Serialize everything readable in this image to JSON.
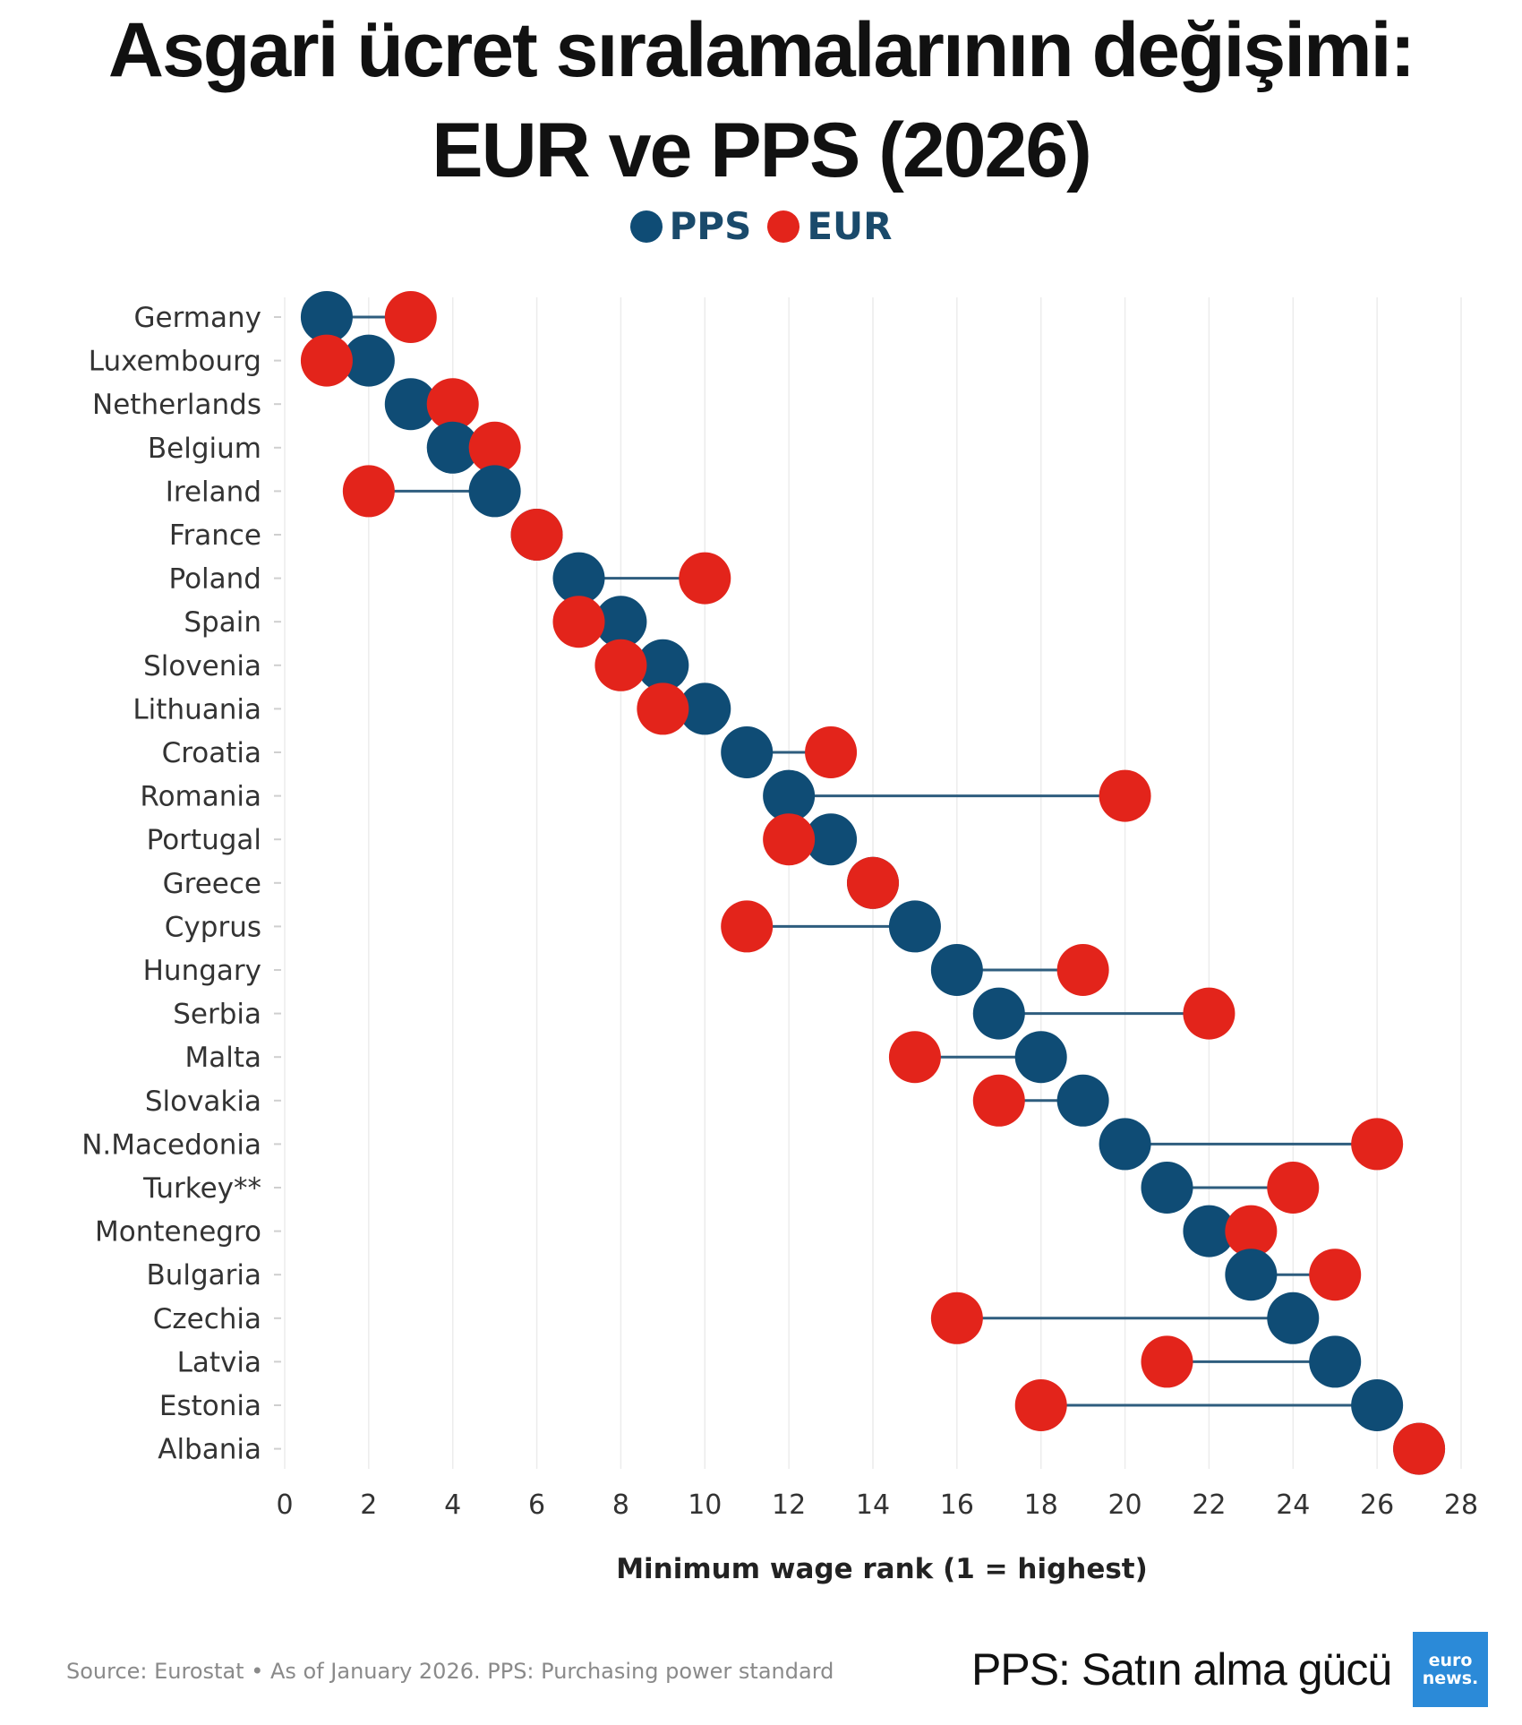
{
  "title_line1": "Asgari ücret sıralamalarının değişimi:",
  "title_line2": "EUR ve PPS (2026)",
  "legend": [
    {
      "label": "PPS",
      "color": "#0f4c75"
    },
    {
      "label": "EUR",
      "color": "#e3241b"
    }
  ],
  "footer": {
    "source": "Source: Eurostat • As of January 2026. PPS: Purchasing power standard",
    "note": "PPS: Satın alma gücü",
    "logo_line1": "euro",
    "logo_line2": "news."
  },
  "chart_data": {
    "type": "dumbbell",
    "xlabel": "Minimum wage rank (1 = highest)",
    "xlim": [
      0,
      28
    ],
    "xticks": [
      0,
      2,
      4,
      6,
      8,
      10,
      12,
      14,
      16,
      18,
      20,
      22,
      24,
      26,
      28
    ],
    "grid": "vertical",
    "legend_position": "top-center",
    "categories": [
      "Germany",
      "Luxembourg",
      "Netherlands",
      "Belgium",
      "Ireland",
      "France",
      "Poland",
      "Spain",
      "Slovenia",
      "Lithuania",
      "Croatia",
      "Romania",
      "Portugal",
      "Greece",
      "Cyprus",
      "Hungary",
      "Serbia",
      "Malta",
      "Slovakia",
      "N.Macedonia",
      "Turkey**",
      "Montenegro",
      "Bulgaria",
      "Czechia",
      "Latvia",
      "Estonia",
      "Albania"
    ],
    "series": [
      {
        "name": "PPS",
        "color": "#0f4c75",
        "values": [
          1,
          2,
          3,
          4,
          5,
          6,
          7,
          8,
          9,
          10,
          11,
          12,
          13,
          14,
          15,
          16,
          17,
          18,
          19,
          20,
          21,
          22,
          23,
          24,
          25,
          26,
          27
        ]
      },
      {
        "name": "EUR",
        "color": "#e3241b",
        "values": [
          3,
          1,
          4,
          5,
          2,
          6,
          10,
          7,
          8,
          9,
          13,
          20,
          12,
          14,
          11,
          19,
          22,
          15,
          17,
          26,
          24,
          23,
          25,
          16,
          21,
          18,
          27
        ]
      }
    ]
  }
}
